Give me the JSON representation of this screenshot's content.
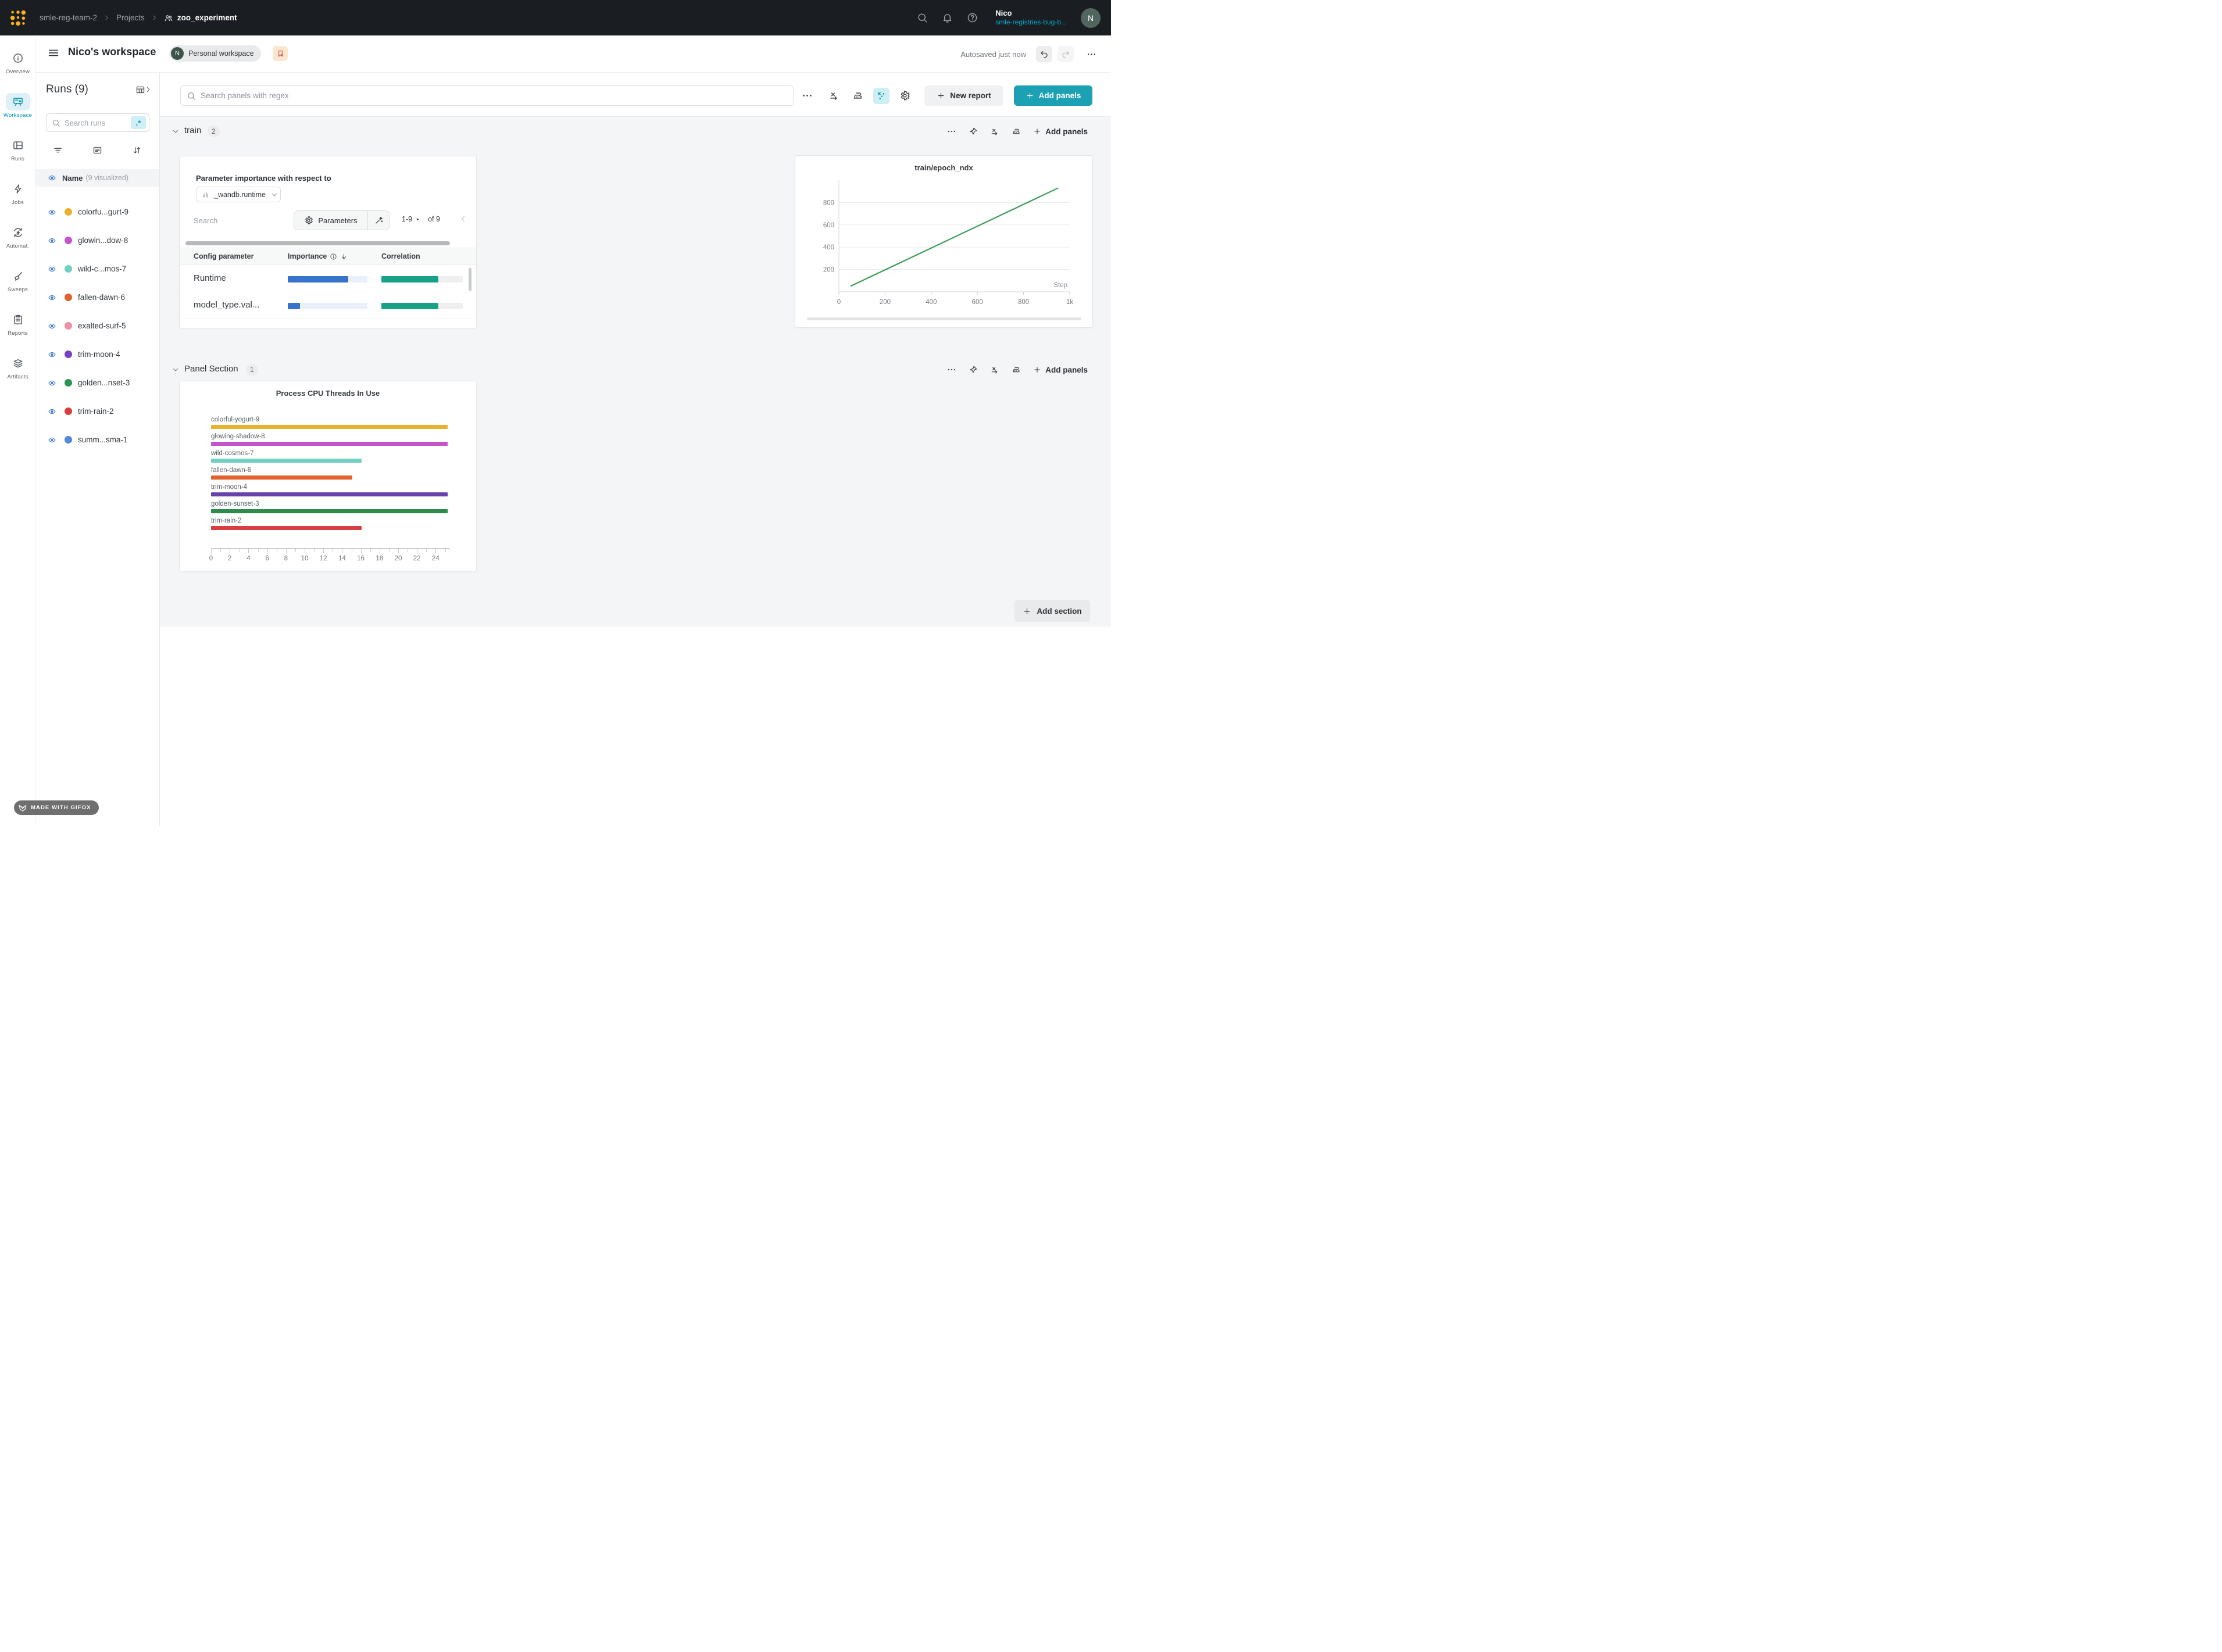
{
  "navbar": {
    "breadcrumb": [
      "smle-reg-team-2",
      "Projects",
      "zoo_experiment"
    ],
    "user": {
      "name": "Nico",
      "org": "smle-registries-bug-b...",
      "avatar": "N"
    }
  },
  "sidebar": {
    "items": [
      {
        "label": "Overview",
        "icon": "overview",
        "active": false
      },
      {
        "label": "Workspace",
        "icon": "workspace",
        "active": true
      },
      {
        "label": "Runs",
        "icon": "runs",
        "active": false
      },
      {
        "label": "Jobs",
        "icon": "jobs",
        "active": false
      },
      {
        "label": "Automat.",
        "icon": "automations",
        "active": false
      },
      {
        "label": "Sweeps",
        "icon": "sweeps",
        "active": false
      },
      {
        "label": "Reports",
        "icon": "reports",
        "active": false
      },
      {
        "label": "Artifacts",
        "icon": "artifacts",
        "active": false
      }
    ]
  },
  "workspace_header": {
    "title": "Nico's workspace",
    "badge_avatar": "N",
    "badge_label": "Personal workspace",
    "autosaved": "Autosaved just now"
  },
  "runs_panel": {
    "title": "Runs (9)",
    "search_placeholder": "Search runs",
    "regex_badge": ".*",
    "header_label": "Name",
    "header_note": "(9 visualized)",
    "runs": [
      {
        "name": "colorfu...gurt-9",
        "color": "#e8b22d"
      },
      {
        "name": "glowin...dow-8",
        "color": "#c556c9"
      },
      {
        "name": "wild-c...mos-7",
        "color": "#72cfc1"
      },
      {
        "name": "fallen-dawn-6",
        "color": "#e2612d"
      },
      {
        "name": "exalted-surf-5",
        "color": "#ef8fa4"
      },
      {
        "name": "trim-moon-4",
        "color": "#7643bd"
      },
      {
        "name": "golden...nset-3",
        "color": "#2f9352"
      },
      {
        "name": "trim-rain-2",
        "color": "#d84040"
      },
      {
        "name": "summ...sma-1",
        "color": "#5387dd"
      }
    ]
  },
  "toolbar": {
    "search_placeholder": "Search panels with regex",
    "new_report": "New report",
    "add_panels": "Add panels"
  },
  "sections": {
    "train": {
      "label": "train",
      "count": "2",
      "add_panels": "Add panels"
    },
    "panel": {
      "label": "Panel Section",
      "count": "1",
      "add_panels": "Add panels"
    }
  },
  "param_panel": {
    "title": "Parameter importance with respect to",
    "metric": "_wandb.runtime",
    "search_placeholder": "Search",
    "parameters_label": "Parameters",
    "page_range": "1-9",
    "page_of": "of 9",
    "columns": {
      "param": "Config parameter",
      "importance": "Importance",
      "correlation": "Correlation"
    },
    "colors": {
      "importance": "#3873cb",
      "importance_track": "#e9f0fb",
      "correlation": "#17a287",
      "correlation_track": "#efefef"
    },
    "rows": [
      {
        "param": "Runtime",
        "importance": 0.76,
        "correlation": 0.7
      },
      {
        "param": "model_type.val...",
        "importance": 0.15,
        "correlation": 0.7
      }
    ]
  },
  "chart_data": [
    {
      "type": "line",
      "title": "train/epoch_ndx",
      "xlabel": "Step",
      "xlim": [
        0,
        1000
      ],
      "ylim": [
        0,
        1000
      ],
      "grid": true,
      "legend": "none",
      "xticks": [
        {
          "v": 0,
          "label": "0"
        },
        {
          "v": 200,
          "label": "200"
        },
        {
          "v": 400,
          "label": "400"
        },
        {
          "v": 600,
          "label": "600"
        },
        {
          "v": 800,
          "label": "800"
        },
        {
          "v": 1000,
          "label": "1k"
        }
      ],
      "yticks": [
        {
          "v": 200,
          "label": "200"
        },
        {
          "v": 400,
          "label": "400"
        },
        {
          "v": 600,
          "label": "600"
        },
        {
          "v": 800,
          "label": "800"
        }
      ],
      "series": [
        {
          "name": "train/epoch_ndx",
          "color": "#3a9e54",
          "points": [
            [
              50,
              50
            ],
            [
              950,
              930
            ]
          ]
        }
      ]
    },
    {
      "type": "bar",
      "orientation": "horizontal",
      "title": "Process CPU Threads In Use",
      "categories": [
        "colorful-yogurt-9",
        "glowing-shadow-8",
        "wild-cosmos-7",
        "fallen-dawn-6",
        "trim-moon-4",
        "golden-sunset-3",
        "trim-rain-2"
      ],
      "values": [
        25.3,
        25.3,
        16.1,
        15.1,
        25.3,
        25.3,
        16.1
      ],
      "colors": [
        "#e8b22d",
        "#c556c9",
        "#72cfc1",
        "#e2612d",
        "#6742ad",
        "#2f8a4e",
        "#d84040"
      ],
      "xlim": [
        0,
        25.5
      ],
      "xticks": [
        0,
        2,
        4,
        6,
        8,
        10,
        12,
        14,
        16,
        18,
        20,
        22,
        24
      ],
      "minor_tick_step": 1,
      "xlabel": "",
      "ylabel": ""
    }
  ],
  "footer": {
    "add_section": "Add section",
    "gifox": "MADE WITH GIFOX"
  }
}
